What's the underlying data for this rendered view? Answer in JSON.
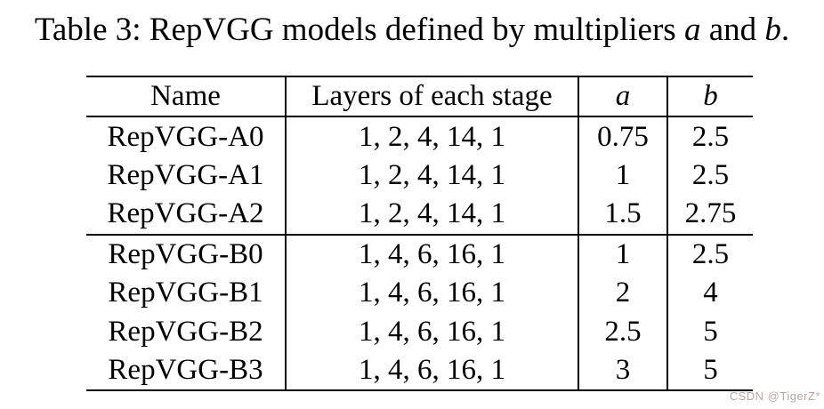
{
  "caption": {
    "text": "Table 3: RepVGG models defined by multipliers",
    "var_a": "a",
    "conj": "and",
    "var_b": "b",
    "end": "."
  },
  "table": {
    "headers": {
      "name": "Name",
      "layers": "Layers of each stage",
      "a": "a",
      "b": "b"
    },
    "rows": [
      {
        "name": "RepVGG-A0",
        "layers": "1, 2, 4, 14, 1",
        "a": "0.75",
        "b": "2.5"
      },
      {
        "name": "RepVGG-A1",
        "layers": "1, 2, 4, 14, 1",
        "a": "1",
        "b": "2.5"
      },
      {
        "name": "RepVGG-A2",
        "layers": "1, 2, 4, 14, 1",
        "a": "1.5",
        "b": "2.75"
      },
      {
        "name": "RepVGG-B0",
        "layers": "1, 4, 6, 16, 1",
        "a": "1",
        "b": "2.5"
      },
      {
        "name": "RepVGG-B1",
        "layers": "1, 4, 6, 16, 1",
        "a": "2",
        "b": "4"
      },
      {
        "name": "RepVGG-B2",
        "layers": "1, 4, 6, 16, 1",
        "a": "2.5",
        "b": "5"
      },
      {
        "name": "RepVGG-B3",
        "layers": "1, 4, 6, 16, 1",
        "a": "3",
        "b": "5"
      }
    ]
  },
  "watermark": {
    "text": "CSDN @TigerZ*",
    "color": "#bfa4a4"
  },
  "colors": {
    "text": "#000000",
    "background": "#ffffff",
    "rule": "#000000"
  }
}
